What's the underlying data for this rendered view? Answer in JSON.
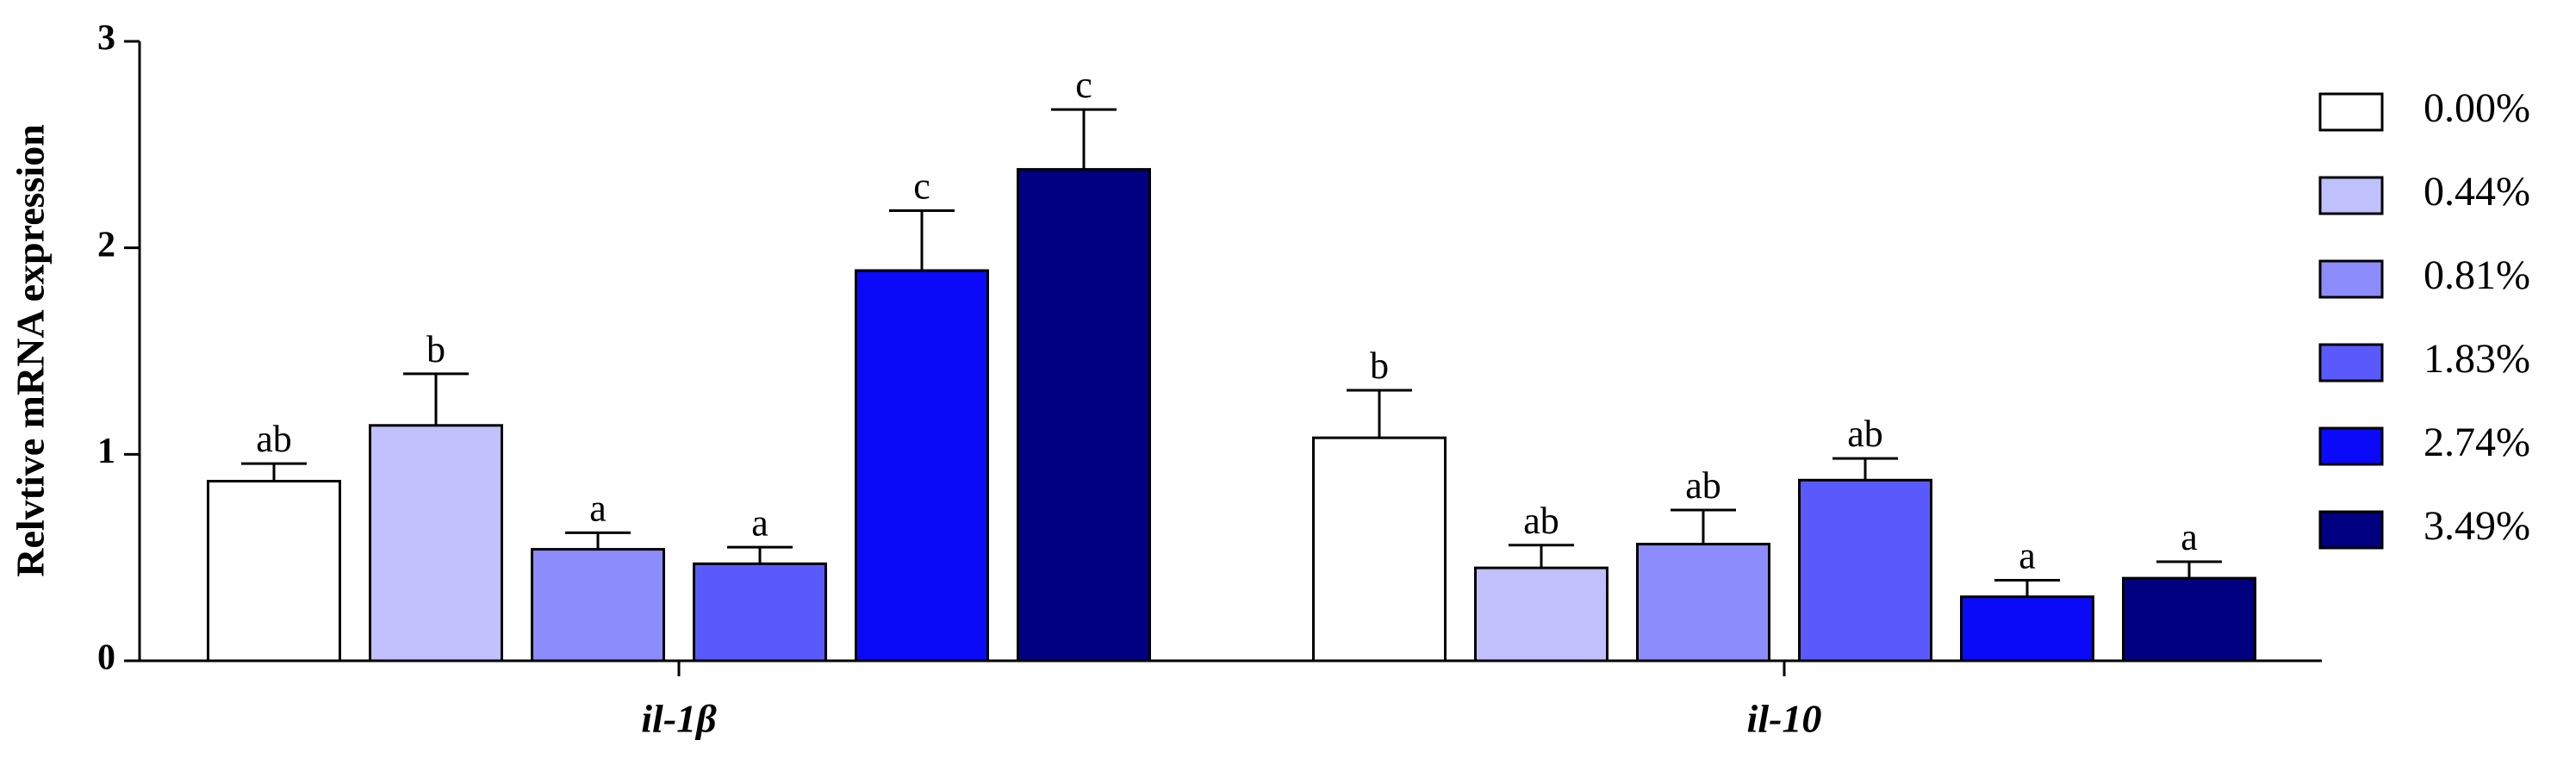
{
  "chart_data": {
    "type": "bar",
    "y_label": "Relvtive mRNA expression",
    "categories": [
      "il-1β",
      "il-10"
    ],
    "ylim": [
      0,
      3
    ],
    "yticks": [
      0,
      1,
      2,
      3
    ],
    "legend": "right",
    "series": [
      {
        "name": "0.00%",
        "color": "#ffffff",
        "values": [
          0.87,
          1.08
        ],
        "errors": [
          0.085,
          0.23
        ],
        "labels": [
          "ab",
          "b"
        ]
      },
      {
        "name": "0.44%",
        "color": "#c0c0fc",
        "values": [
          1.14,
          0.45
        ],
        "errors": [
          0.25,
          0.11
        ],
        "labels": [
          "b",
          "ab"
        ]
      },
      {
        "name": "0.81%",
        "color": "#8c8cfc",
        "values": [
          0.54,
          0.565
        ],
        "errors": [
          0.08,
          0.165
        ],
        "labels": [
          "a",
          "ab"
        ]
      },
      {
        "name": "1.83%",
        "color": "#5a5afc",
        "values": [
          0.47,
          0.875
        ],
        "errors": [
          0.08,
          0.105
        ],
        "labels": [
          "a",
          "ab"
        ]
      },
      {
        "name": "2.74%",
        "color": "#0a0af8",
        "values": [
          1.89,
          0.31
        ],
        "errors": [
          0.29,
          0.08
        ],
        "labels": [
          "c",
          "a"
        ]
      },
      {
        "name": "3.49%",
        "color": "#000080",
        "values": [
          2.38,
          0.4
        ],
        "errors": [
          0.29,
          0.08
        ],
        "labels": [
          "c",
          "a"
        ]
      }
    ]
  }
}
